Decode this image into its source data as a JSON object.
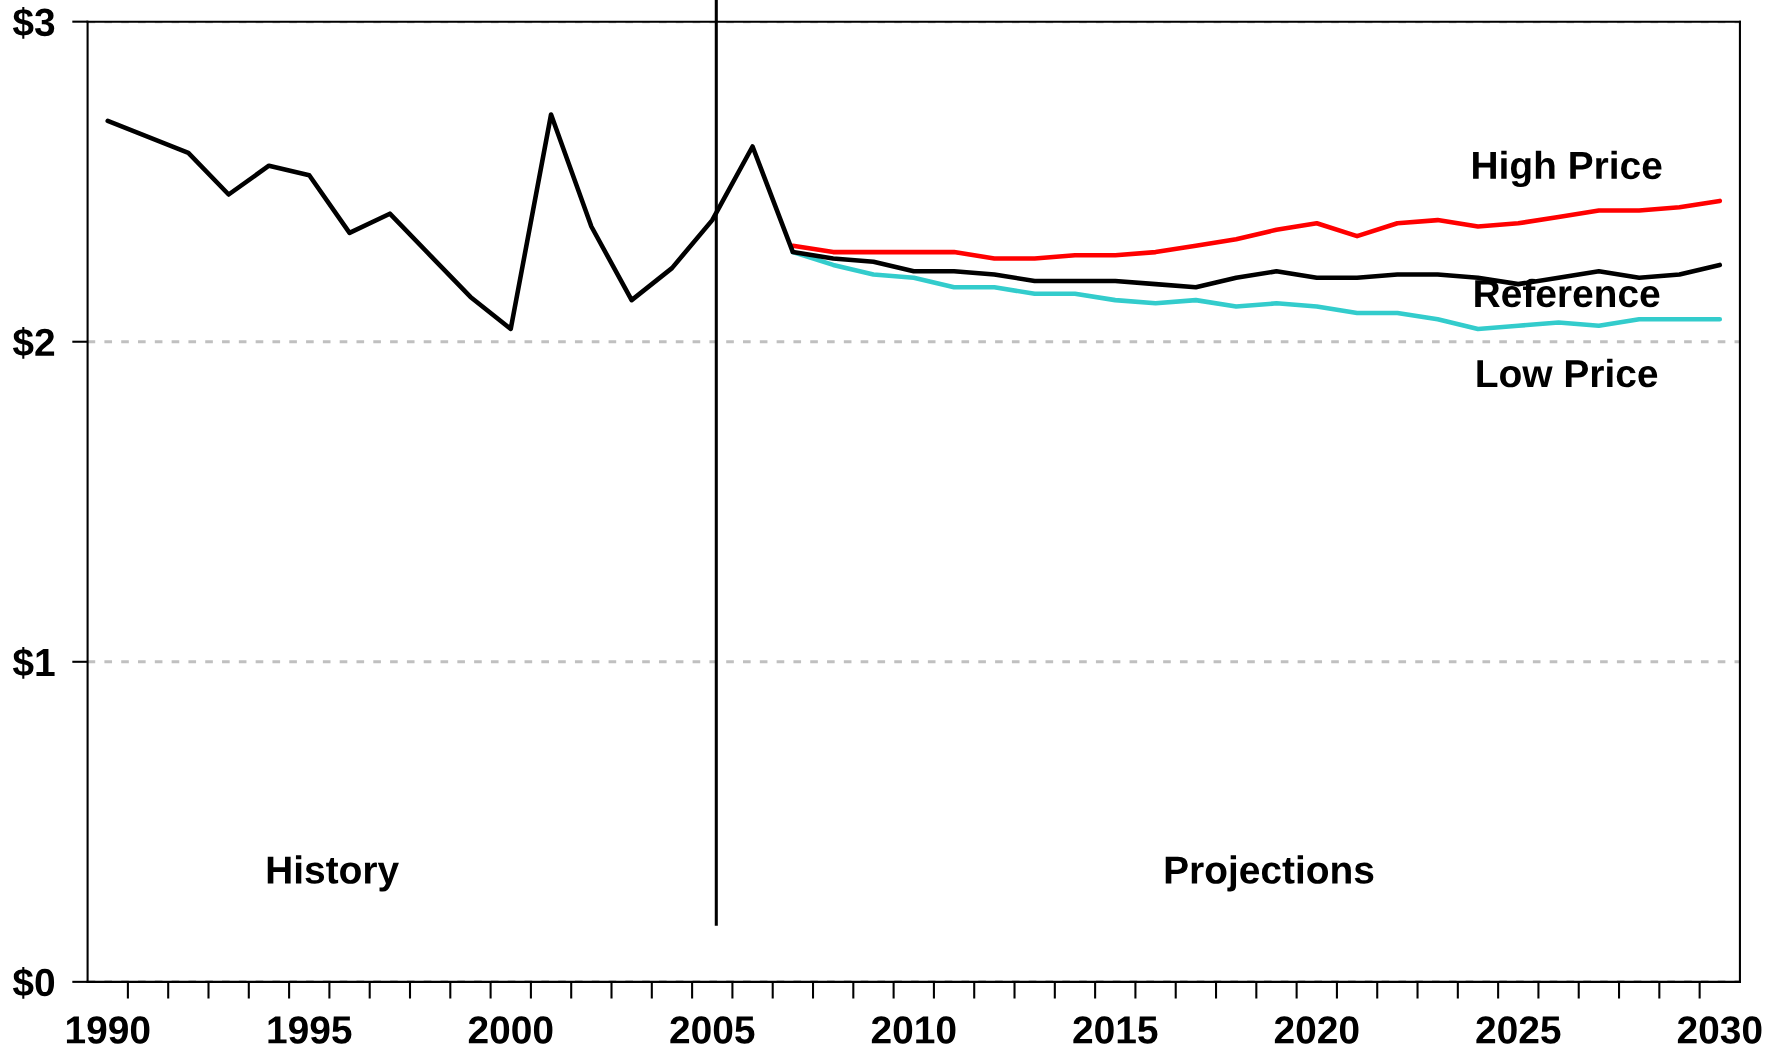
{
  "chart_data": {
    "type": "line",
    "xlim": [
      1989.5,
      2030.5
    ],
    "xticks": [
      1990,
      1995,
      2000,
      2005,
      2010,
      2015,
      2020,
      2025,
      2030
    ],
    "ylim": [
      0,
      3
    ],
    "yticks": [
      {
        "value": 0,
        "label": "$0"
      },
      {
        "value": 1,
        "label": "$1"
      },
      {
        "value": 2,
        "label": "$2"
      },
      {
        "value": 3,
        "label": "$3"
      }
    ],
    "grid": "y",
    "line_style": "solid",
    "series": [
      {
        "name": "High Price",
        "color": "#ff0000",
        "x": [
          2007,
          2008,
          2009,
          2010,
          2011,
          2012,
          2013,
          2014,
          2015,
          2016,
          2017,
          2018,
          2019,
          2020,
          2021,
          2022,
          2023,
          2024,
          2025,
          2026,
          2027,
          2028,
          2029,
          2030
        ],
        "values": [
          2.3,
          2.28,
          2.28,
          2.28,
          2.28,
          2.26,
          2.26,
          2.27,
          2.27,
          2.28,
          2.3,
          2.32,
          2.35,
          2.37,
          2.33,
          2.37,
          2.38,
          2.36,
          2.37,
          2.39,
          2.41,
          2.41,
          2.42,
          2.44
        ]
      },
      {
        "name": "Low Price",
        "color": "#33cccc",
        "x": [
          2007,
          2008,
          2009,
          2010,
          2011,
          2012,
          2013,
          2014,
          2015,
          2016,
          2017,
          2018,
          2019,
          2020,
          2021,
          2022,
          2023,
          2024,
          2025,
          2026,
          2027,
          2028,
          2029,
          2030
        ],
        "values": [
          2.28,
          2.24,
          2.21,
          2.2,
          2.17,
          2.17,
          2.15,
          2.15,
          2.13,
          2.12,
          2.13,
          2.11,
          2.12,
          2.11,
          2.09,
          2.09,
          2.07,
          2.04,
          2.05,
          2.06,
          2.05,
          2.07,
          2.07,
          2.07
        ]
      },
      {
        "name": "Reference",
        "color": "#000000",
        "x": [
          1990,
          1991,
          1992,
          1993,
          1994,
          1995,
          1996,
          1997,
          1998,
          1999,
          2000,
          2001,
          2002,
          2003,
          2004,
          2005,
          2006,
          2007,
          2008,
          2009,
          2010,
          2011,
          2012,
          2013,
          2014,
          2015,
          2016,
          2017,
          2018,
          2019,
          2020,
          2021,
          2022,
          2023,
          2024,
          2025,
          2026,
          2027,
          2028,
          2029,
          2030
        ],
        "values": [
          2.69,
          2.64,
          2.59,
          2.46,
          2.55,
          2.52,
          2.34,
          2.4,
          2.27,
          2.14,
          2.04,
          2.71,
          2.36,
          2.13,
          2.23,
          2.38,
          2.61,
          2.28,
          2.26,
          2.25,
          2.22,
          2.22,
          2.21,
          2.19,
          2.19,
          2.19,
          2.18,
          2.17,
          2.2,
          2.22,
          2.2,
          2.2,
          2.21,
          2.21,
          2.2,
          2.18,
          2.2,
          2.22,
          2.2,
          2.21,
          2.24
        ]
      }
    ],
    "ref_lines": [
      {
        "axis": "x",
        "value": 2005.1,
        "color": "#000000",
        "line_style": "solid"
      }
    ],
    "annotations": [
      "History",
      "Projections"
    ]
  }
}
